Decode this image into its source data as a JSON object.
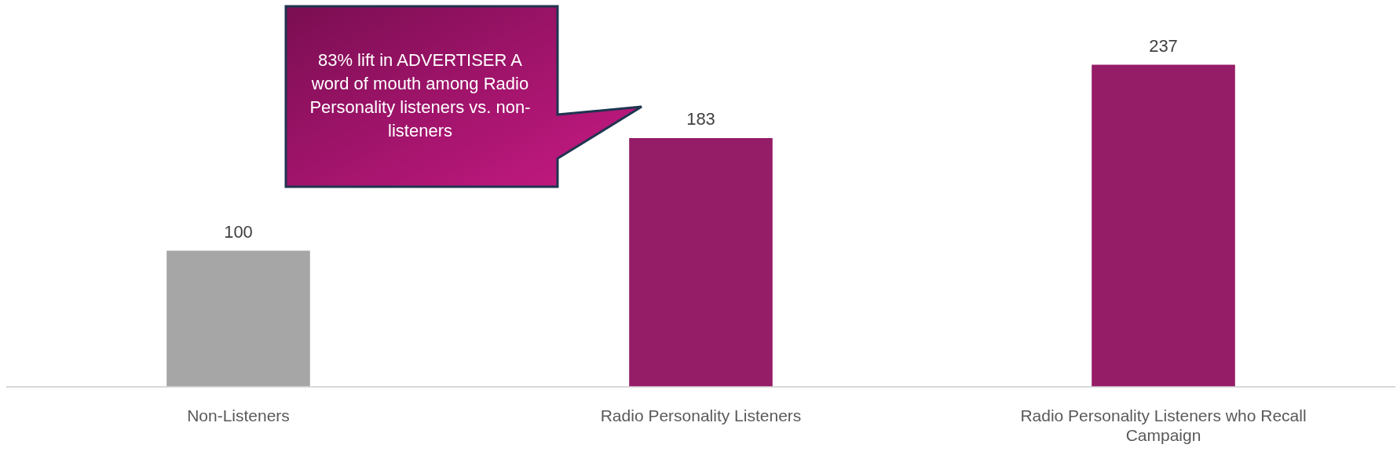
{
  "chart_data": {
    "type": "bar",
    "categories": [
      "Non-Listeners",
      "Radio Personality Listeners",
      "Radio Personality Listeners who Recall Campaign"
    ],
    "values": [
      100,
      183,
      237
    ],
    "colors": [
      "#a6a6a6",
      "#951c66",
      "#951c66"
    ],
    "data_labels": true,
    "grid": false,
    "legend": false,
    "annotations": [
      "83% lift in ADVERTISER A word of mouth among Radio Personality listeners vs. non-listeners"
    ]
  }
}
